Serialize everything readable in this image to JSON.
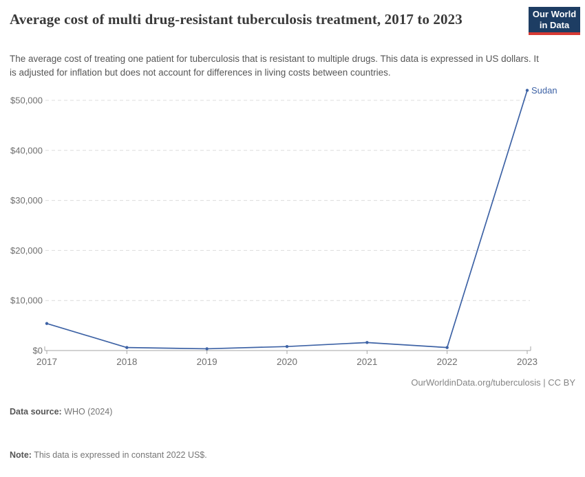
{
  "header": {
    "title": "Average cost of multi drug-resistant tuberculosis treatment, 2017 to 2023",
    "subtitle": "The average cost of treating one patient for tuberculosis that is resistant to multiple drugs. This data is expressed in US dollars. It is adjusted for inflation but does not account for differences in living costs between countries.",
    "logo": {
      "line1": "Our World",
      "line2": "in Data"
    }
  },
  "chart_data": {
    "type": "line",
    "title": "Average cost of multi drug-resistant tuberculosis treatment, 2017 to 2023",
    "x": [
      2017,
      2018,
      2019,
      2020,
      2021,
      2022,
      2023
    ],
    "series": [
      {
        "name": "Sudan",
        "values": [
          5400,
          600,
          350,
          800,
          1600,
          600,
          52000
        ]
      }
    ],
    "xlabel": "",
    "ylabel": "",
    "ylim": [
      0,
      50000
    ],
    "ytick_step": 10000,
    "ytick_labels": [
      "$0",
      "$10,000",
      "$20,000",
      "$30,000",
      "$40,000",
      "$50,000"
    ],
    "xtick_labels": [
      "2017",
      "2018",
      "2019",
      "2020",
      "2021",
      "2022",
      "2023"
    ],
    "grid": "horizontal-dashed",
    "legend_position": "line-end-label",
    "unit": "US$"
  },
  "footer": {
    "datasource_label": "Data source:",
    "datasource_value": " WHO (2024)",
    "note_label": "Note:",
    "note_value": " This data is expressed in constant 2022 US$.",
    "link": "OurWorldinData.org/tuberculosis | CC BY"
  },
  "colors": {
    "series_line": "#3d62a5",
    "grid_line": "#dcdcdc",
    "axis_line": "#a5a5a5",
    "tick_label": "#6e6e6e",
    "logo_bg": "#1d3d63",
    "logo_stripe": "#d73a34"
  }
}
